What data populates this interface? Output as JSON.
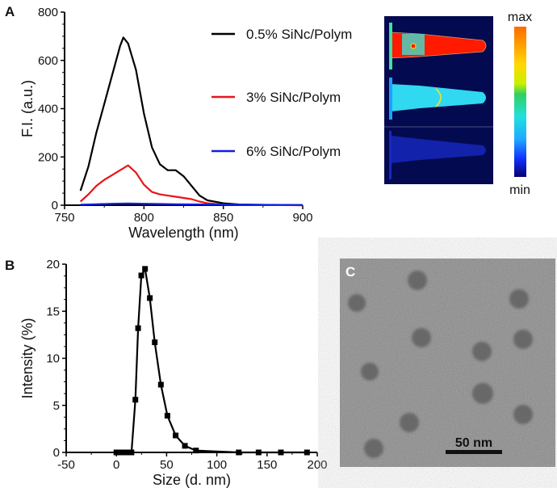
{
  "chart_data": [
    {
      "panel": "A",
      "type": "line",
      "xlabel": "Wavelength (nm)",
      "ylabel": "F.I. (a.u.)",
      "xlim": [
        750,
        900
      ],
      "ylim": [
        0,
        800
      ],
      "xticks": [
        750,
        800,
        850,
        900
      ],
      "yticks": [
        0,
        200,
        400,
        600,
        800
      ],
      "grid": false,
      "legend_placement": "right",
      "series": [
        {
          "name": "0.5% SiNc/Polym",
          "color": "#000000",
          "x": [
            760,
            765,
            770,
            775,
            780,
            785,
            787,
            790,
            795,
            800,
            805,
            810,
            815,
            820,
            825,
            830,
            835,
            840,
            850,
            860,
            880,
            900
          ],
          "y": [
            60,
            160,
            300,
            420,
            540,
            660,
            695,
            670,
            560,
            380,
            240,
            170,
            145,
            145,
            120,
            80,
            40,
            20,
            8,
            3,
            1,
            0
          ]
        },
        {
          "name": "3% SiNc/Polym",
          "color": "#e8141a",
          "x": [
            760,
            765,
            770,
            775,
            780,
            785,
            790,
            795,
            800,
            805,
            810,
            815,
            820,
            825,
            830,
            835,
            840,
            850,
            860,
            900
          ],
          "y": [
            15,
            45,
            80,
            105,
            125,
            145,
            165,
            135,
            85,
            55,
            45,
            40,
            35,
            30,
            25,
            15,
            8,
            2,
            1,
            0
          ]
        },
        {
          "name": "6% SiNc/Polym",
          "color": "#1020e0",
          "x": [
            760,
            770,
            780,
            790,
            800,
            810,
            820,
            840,
            860,
            900
          ],
          "y": [
            2,
            4,
            6,
            7,
            6,
            5,
            4,
            3,
            2,
            1
          ]
        }
      ]
    },
    {
      "panel": "B",
      "type": "line",
      "xlabel": "Size (d. nm)",
      "ylabel": "Intensity (%)",
      "xlim": [
        -50,
        200
      ],
      "ylim": [
        0,
        20
      ],
      "xticks": [
        -50,
        0,
        50,
        100,
        150,
        200
      ],
      "yticks": [
        0,
        5,
        10,
        15,
        20
      ],
      "grid": false,
      "marker": "square",
      "series": [
        {
          "x": [
            0,
            5,
            10,
            15,
            18.9,
            21.6,
            24.8,
            28.5,
            33.3,
            38.2,
            44.3,
            50.8,
            59,
            68.2,
            79.2,
            121.8,
            141.6,
            163.8,
            189.8
          ],
          "y": [
            0,
            0,
            0,
            0,
            5.6,
            13.2,
            18.8,
            19.5,
            16.4,
            11.7,
            7.2,
            3.9,
            1.8,
            0.7,
            0.2,
            0,
            0,
            0,
            0
          ]
        }
      ]
    }
  ],
  "panel_labels": {
    "a": "A",
    "b": "B",
    "c": "C"
  },
  "colorbar": {
    "max_label": "max",
    "min_label": "min",
    "colors": [
      "#ff6a00",
      "#ffd800",
      "#c8f000",
      "#30d060",
      "#20e0e0",
      "#20a8ff",
      "#1030ff",
      "#080070"
    ]
  },
  "tem": {
    "scale_bar_label": "50 nm"
  }
}
